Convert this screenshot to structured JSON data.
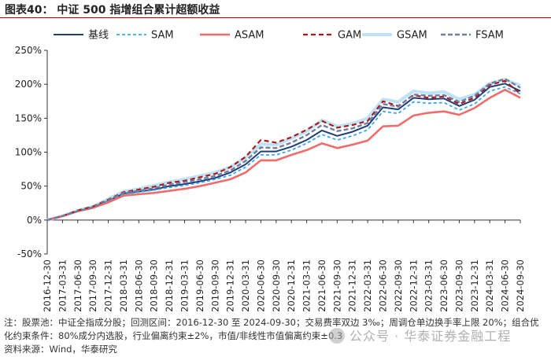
{
  "title": "图表40：  中证 500 指增组合累计超额收益",
  "notes": [
    "注：股票池：中证全指成分股；回测区间：2016-12-30 至 2024-09-30；交易费率双边 3‰；周调仓单边换手率上限 20%；组合优",
    "化约束条件：80%成分内选股，行业偏离约束±2%，市值/非线性市值偏离约束±0.3",
    "资料来源：Wind，华泰研究"
  ],
  "watermark": "公众号 · 华泰证券金融工程",
  "chart_data": {
    "type": "line",
    "x": [
      "2016-12-30",
      "2017-03-31",
      "2017-06-30",
      "2017-09-30",
      "2017-12-31",
      "2018-03-31",
      "2018-06-30",
      "2018-09-30",
      "2018-12-31",
      "2019-03-31",
      "2019-06-30",
      "2019-09-30",
      "2019-12-31",
      "2020-03-31",
      "2020-06-30",
      "2020-09-30",
      "2020-12-31",
      "2021-03-31",
      "2021-06-30",
      "2021-09-30",
      "2021-12-31",
      "2022-03-31",
      "2022-06-30",
      "2022-09-30",
      "2022-12-31",
      "2023-03-31",
      "2023-06-30",
      "2023-09-30",
      "2023-12-31",
      "2024-03-31",
      "2024-06-30",
      "2024-09-30"
    ],
    "series": [
      {
        "name": "基线",
        "color": "#1f3d7a",
        "dash": "",
        "width": 2,
        "values": [
          0,
          6,
          13,
          19,
          28,
          39,
          42,
          45,
          50,
          53,
          57,
          62,
          70,
          82,
          101,
          101,
          108,
          118,
          132,
          124,
          130,
          139,
          166,
          163,
          180,
          178,
          179,
          168,
          177,
          196,
          201,
          190
        ]
      },
      {
        "name": "SAM",
        "color": "#3ea6e8",
        "dash": "4,3",
        "width": 1.8,
        "values": [
          0,
          6,
          13,
          19,
          28,
          38,
          41,
          44,
          48,
          51,
          55,
          60,
          66,
          78,
          96,
          96,
          103,
          113,
          126,
          118,
          124,
          133,
          160,
          157,
          174,
          172,
          173,
          162,
          171,
          190,
          196,
          186
        ]
      },
      {
        "name": "ASAM",
        "color": "#f26b6b",
        "dash": "",
        "width": 2.6,
        "values": [
          0,
          6,
          13,
          18,
          26,
          36,
          38,
          40,
          43,
          46,
          50,
          55,
          60,
          70,
          88,
          88,
          96,
          103,
          113,
          106,
          111,
          117,
          138,
          139,
          154,
          158,
          160,
          155,
          165,
          180,
          192,
          180
        ]
      },
      {
        "name": "GAM",
        "color": "#b01818",
        "dash": "6,4",
        "width": 2.2,
        "values": [
          0,
          6,
          14,
          20,
          30,
          41,
          45,
          49,
          55,
          58,
          63,
          68,
          78,
          93,
          118,
          114,
          122,
          133,
          146,
          136,
          140,
          146,
          175,
          168,
          184,
          180,
          182,
          171,
          180,
          199,
          205,
          186
        ]
      },
      {
        "name": "GSAM",
        "color": "#bfe2f5",
        "dash": "",
        "width": 4,
        "values": [
          0,
          6,
          14,
          20,
          31,
          42,
          46,
          51,
          56,
          60,
          65,
          70,
          78,
          92,
          112,
          111,
          120,
          131,
          147,
          138,
          142,
          150,
          178,
          174,
          190,
          187,
          189,
          178,
          185,
          201,
          207,
          198
        ]
      },
      {
        "name": "FSAM",
        "color": "#6e7fa0",
        "dash": "6,3",
        "width": 2.4,
        "values": [
          0,
          6,
          13,
          19,
          29,
          40,
          43,
          47,
          52,
          56,
          60,
          65,
          73,
          87,
          107,
          106,
          114,
          125,
          140,
          131,
          135,
          143,
          171,
          167,
          185,
          183,
          184,
          174,
          183,
          201,
          208,
          195
        ]
      }
    ],
    "ylim": [
      -50,
      250
    ],
    "yticks": [
      -50,
      0,
      50,
      100,
      150,
      200,
      250
    ],
    "ytick_labels": [
      "-50%",
      "0%",
      "50%",
      "100%",
      "150%",
      "200%",
      "250%"
    ],
    "grid": false,
    "legend": "top"
  }
}
